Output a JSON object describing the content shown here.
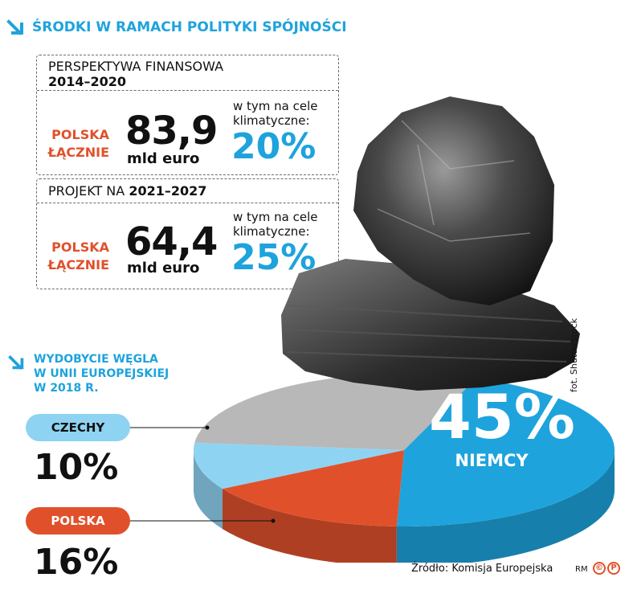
{
  "top_heading": "ŚRODKI W RAMACH POLITYKI SPÓJNOŚCI",
  "panels": [
    {
      "label": "PERSPEKTYWA FINANSOWA",
      "years": "2014–2020",
      "region_label_1": "POLSKA",
      "region_label_2": "ŁĄCZNIE",
      "amount": "83,9",
      "unit": "mld euro",
      "climate_note": "w tym na cele klimatyczne:",
      "climate_pct": "20%"
    },
    {
      "label": "PROJEKT NA",
      "years": "2021–2027",
      "region_label_1": "POLSKA",
      "region_label_2": "ŁĄCZNIE",
      "amount": "64,4",
      "unit": "mld euro",
      "climate_note": "w tym na cele klimatyczne:",
      "climate_pct": "25%"
    }
  ],
  "coal_heading_lines": [
    "WYDOBYCIE WĘGLA",
    "W UNII EUROPEJSKIEJ",
    "W 2018 R."
  ],
  "chart_data": {
    "type": "pie",
    "title": "WYDOBYCIE WĘGLA W UNII EUROPEJSKIEJ W 2018 R.",
    "slices": [
      {
        "label": "NIEMCY",
        "value": 45,
        "display": "45%",
        "color": "#1ea3dc"
      },
      {
        "label": "POLSKA",
        "value": 16,
        "display": "16%",
        "color": "#e0512b"
      },
      {
        "label": "CZECHY",
        "value": 10,
        "display": "10%",
        "color": "#8fd3f2"
      },
      {
        "label": "",
        "value": 29,
        "display": "",
        "color": "#b8b8b8"
      }
    ]
  },
  "photo_credit": "fot. Shutterstock",
  "source": "Źródło: Komisja Europejska",
  "author_mark": "RM",
  "copyright_mark": "©",
  "publisher_mark": "P",
  "colors": {
    "accent_blue": "#1ea3dc",
    "accent_orange": "#e0512b",
    "light_blue": "#8fd3f2",
    "gray": "#b8b8b8"
  }
}
